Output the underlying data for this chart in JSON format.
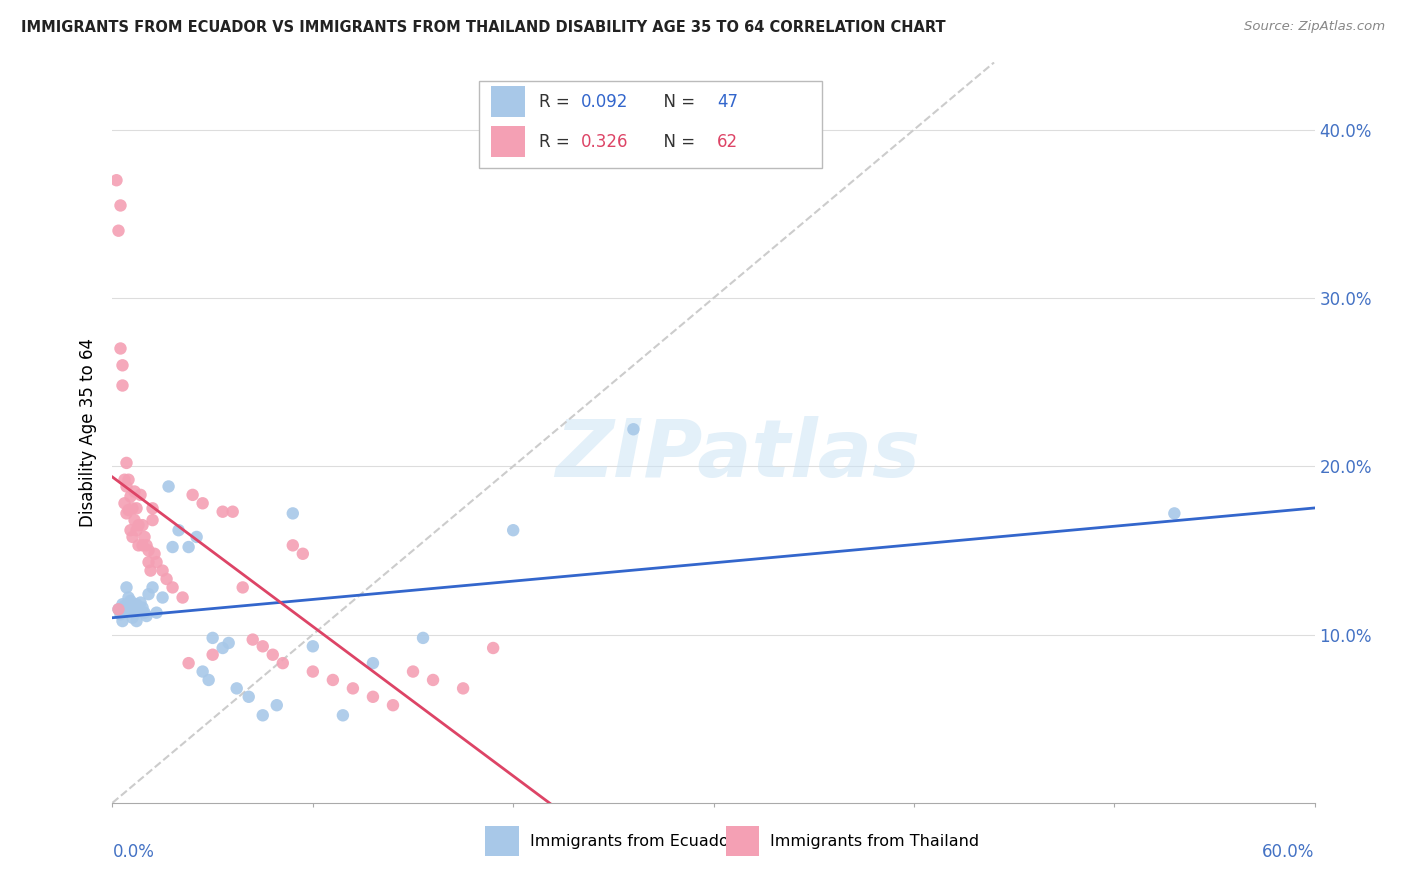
{
  "title": "IMMIGRANTS FROM ECUADOR VS IMMIGRANTS FROM THAILAND DISABILITY AGE 35 TO 64 CORRELATION CHART",
  "source": "Source: ZipAtlas.com",
  "ylabel": "Disability Age 35 to 64",
  "xlim": [
    0.0,
    0.6
  ],
  "ylim": [
    0.0,
    0.44
  ],
  "ytick_labels": [
    "10.0%",
    "20.0%",
    "30.0%",
    "40.0%"
  ],
  "ytick_values": [
    0.1,
    0.2,
    0.3,
    0.4
  ],
  "xtick_labels": [
    "0.0%",
    "60.0%"
  ],
  "xtick_values": [
    0.0,
    0.6
  ],
  "ecuador_R": 0.092,
  "ecuador_N": 47,
  "thailand_R": 0.326,
  "thailand_N": 62,
  "ecuador_color": "#a8c8e8",
  "thailand_color": "#f4a0b4",
  "ecuador_line_color": "#3366cc",
  "thailand_line_color": "#dd4466",
  "diagonal_color": "#cccccc",
  "ecuador_x": [
    0.003,
    0.004,
    0.005,
    0.005,
    0.006,
    0.006,
    0.007,
    0.007,
    0.008,
    0.008,
    0.009,
    0.01,
    0.01,
    0.011,
    0.012,
    0.012,
    0.013,
    0.014,
    0.015,
    0.016,
    0.017,
    0.018,
    0.02,
    0.022,
    0.025,
    0.028,
    0.03,
    0.033,
    0.038,
    0.042,
    0.045,
    0.048,
    0.05,
    0.055,
    0.058,
    0.062,
    0.068,
    0.075,
    0.082,
    0.09,
    0.1,
    0.115,
    0.13,
    0.155,
    0.2,
    0.26,
    0.53
  ],
  "ecuador_y": [
    0.115,
    0.112,
    0.118,
    0.108,
    0.113,
    0.117,
    0.114,
    0.128,
    0.122,
    0.116,
    0.12,
    0.115,
    0.11,
    0.113,
    0.108,
    0.118,
    0.114,
    0.119,
    0.116,
    0.113,
    0.111,
    0.124,
    0.128,
    0.113,
    0.122,
    0.188,
    0.152,
    0.162,
    0.152,
    0.158,
    0.078,
    0.073,
    0.098,
    0.092,
    0.095,
    0.068,
    0.063,
    0.052,
    0.058,
    0.172,
    0.093,
    0.052,
    0.083,
    0.098,
    0.162,
    0.222,
    0.172
  ],
  "thailand_x": [
    0.002,
    0.003,
    0.003,
    0.004,
    0.004,
    0.005,
    0.005,
    0.006,
    0.006,
    0.007,
    0.007,
    0.007,
    0.008,
    0.008,
    0.009,
    0.009,
    0.01,
    0.01,
    0.011,
    0.011,
    0.012,
    0.012,
    0.013,
    0.013,
    0.014,
    0.015,
    0.015,
    0.016,
    0.017,
    0.018,
    0.018,
    0.019,
    0.02,
    0.02,
    0.021,
    0.022,
    0.025,
    0.027,
    0.03,
    0.035,
    0.038,
    0.04,
    0.045,
    0.05,
    0.055,
    0.06,
    0.065,
    0.07,
    0.075,
    0.08,
    0.085,
    0.09,
    0.095,
    0.1,
    0.11,
    0.12,
    0.13,
    0.14,
    0.15,
    0.16,
    0.175,
    0.19
  ],
  "thailand_y": [
    0.37,
    0.34,
    0.115,
    0.355,
    0.27,
    0.26,
    0.248,
    0.192,
    0.178,
    0.202,
    0.188,
    0.172,
    0.192,
    0.174,
    0.182,
    0.162,
    0.175,
    0.158,
    0.185,
    0.168,
    0.175,
    0.162,
    0.165,
    0.153,
    0.183,
    0.165,
    0.153,
    0.158,
    0.153,
    0.15,
    0.143,
    0.138,
    0.175,
    0.168,
    0.148,
    0.143,
    0.138,
    0.133,
    0.128,
    0.122,
    0.083,
    0.183,
    0.178,
    0.088,
    0.173,
    0.173,
    0.128,
    0.097,
    0.093,
    0.088,
    0.083,
    0.153,
    0.148,
    0.078,
    0.073,
    0.068,
    0.063,
    0.058,
    0.078,
    0.073,
    0.068,
    0.092
  ]
}
